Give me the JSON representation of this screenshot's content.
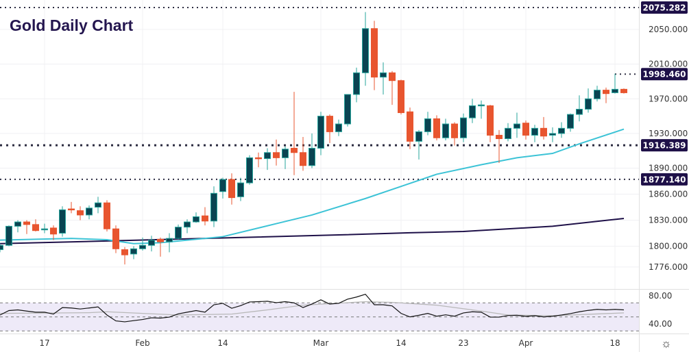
{
  "title": "Gold Daily Chart",
  "colors": {
    "up_body": "#0a4452",
    "up_wick": "#25a49b",
    "down_body": "#e8552f",
    "down_wick": "#e8552f",
    "ma_fast": "#3cc3d6",
    "ma_slow": "#1e1048",
    "level_bg": "#1e1048",
    "rsi": "#111111",
    "rsi_ma": "#b8b8b8",
    "rsi_band": "#eeeaf8"
  },
  "settings_icon": "gear-icon",
  "chart_data": {
    "type": "candlestick",
    "title": "Gold Daily Chart",
    "ylim": [
      1765,
      2085
    ],
    "y_ticks": [
      "1776.000",
      "1800.000",
      "1830.000",
      "1860.000",
      "1890.000",
      "1930.000",
      "1970.000",
      "2010.000",
      "2050.000"
    ],
    "x_ticks": [
      {
        "label": "17",
        "index": 5
      },
      {
        "label": "Feb",
        "index": 16
      },
      {
        "label": "14",
        "index": 25
      },
      {
        "label": "Mar",
        "index": 36
      },
      {
        "label": "14",
        "index": 45
      },
      {
        "label": "23",
        "index": 52
      },
      {
        "label": "Apr",
        "index": 59
      },
      {
        "label": "18",
        "index": 69
      }
    ],
    "levels": [
      {
        "value": 2075.282,
        "label": "2075.282",
        "from_index": 0
      },
      {
        "value": 1998.46,
        "label": "1998.460",
        "from_index": 69
      },
      {
        "value": 1916.389,
        "label": "1916.389",
        "from_index": 0
      },
      {
        "value": 1877.14,
        "label": "1877.140",
        "from_index": 0
      }
    ],
    "ohlc": [
      [
        1796,
        1803,
        1793,
        1801
      ],
      [
        1801,
        1824,
        1800,
        1823
      ],
      [
        1823,
        1830,
        1816,
        1828
      ],
      [
        1828,
        1830,
        1814,
        1825
      ],
      [
        1825,
        1831,
        1817,
        1818
      ],
      [
        1819,
        1826,
        1815,
        1820
      ],
      [
        1821,
        1824,
        1807,
        1814
      ],
      [
        1815,
        1846,
        1811,
        1842
      ],
      [
        1843,
        1851,
        1838,
        1842
      ],
      [
        1841,
        1846,
        1830,
        1836
      ],
      [
        1836,
        1847,
        1831,
        1844
      ],
      [
        1845,
        1857,
        1838,
        1850
      ],
      [
        1850,
        1853,
        1817,
        1820
      ],
      [
        1820,
        1824,
        1792,
        1797
      ],
      [
        1796,
        1799,
        1779,
        1790
      ],
      [
        1791,
        1800,
        1785,
        1797
      ],
      [
        1797,
        1810,
        1795,
        1801
      ],
      [
        1801,
        1812,
        1794,
        1807
      ],
      [
        1808,
        1810,
        1788,
        1805
      ],
      [
        1805,
        1815,
        1793,
        1809
      ],
      [
        1809,
        1825,
        1808,
        1822
      ],
      [
        1822,
        1831,
        1815,
        1828
      ],
      [
        1828,
        1839,
        1827,
        1834
      ],
      [
        1835,
        1845,
        1824,
        1829
      ],
      [
        1829,
        1869,
        1822,
        1861
      ],
      [
        1863,
        1879,
        1855,
        1877
      ],
      [
        1877,
        1884,
        1848,
        1856
      ],
      [
        1857,
        1879,
        1852,
        1873
      ],
      [
        1873,
        1905,
        1871,
        1902
      ],
      [
        1902,
        1908,
        1891,
        1901
      ],
      [
        1901,
        1913,
        1888,
        1908
      ],
      [
        1908,
        1923,
        1893,
        1902
      ],
      [
        1902,
        1915,
        1889,
        1912
      ],
      [
        1913,
        1978,
        1882,
        1908
      ],
      [
        1908,
        1926,
        1887,
        1893
      ],
      [
        1893,
        1930,
        1890,
        1913
      ],
      [
        1913,
        1955,
        1905,
        1950
      ],
      [
        1950,
        1952,
        1919,
        1932
      ],
      [
        1932,
        1946,
        1927,
        1941
      ],
      [
        1941,
        1975,
        1938,
        1975
      ],
      [
        1975,
        2006,
        1966,
        2000
      ],
      [
        2000,
        2070,
        1985,
        2051
      ],
      [
        2051,
        2060,
        1980,
        1995
      ],
      [
        1995,
        2012,
        1975,
        2000
      ],
      [
        2000,
        2002,
        1963,
        1991
      ],
      [
        1991,
        1992,
        1952,
        1954
      ],
      [
        1955,
        1960,
        1912,
        1921
      ],
      [
        1921,
        1934,
        1900,
        1932
      ],
      [
        1932,
        1955,
        1928,
        1947
      ],
      [
        1947,
        1951,
        1922,
        1925
      ],
      [
        1925,
        1947,
        1922,
        1941
      ],
      [
        1941,
        1943,
        1916,
        1925
      ],
      [
        1925,
        1953,
        1920,
        1948
      ],
      [
        1948,
        1970,
        1942,
        1962
      ],
      [
        1962,
        1968,
        1947,
        1963
      ],
      [
        1962,
        1963,
        1920,
        1928
      ],
      [
        1928,
        1934,
        1896,
        1924
      ],
      [
        1924,
        1942,
        1921,
        1936
      ],
      [
        1936,
        1954,
        1925,
        1941
      ],
      [
        1942,
        1945,
        1923,
        1928
      ],
      [
        1928,
        1940,
        1920,
        1936
      ],
      [
        1936,
        1949,
        1923,
        1927
      ],
      [
        1928,
        1937,
        1920,
        1930
      ],
      [
        1930,
        1943,
        1925,
        1936
      ],
      [
        1936,
        1953,
        1932,
        1952
      ],
      [
        1952,
        1974,
        1944,
        1958
      ],
      [
        1958,
        1982,
        1954,
        1970
      ],
      [
        1970,
        1985,
        1967,
        1980
      ],
      [
        1980,
        1983,
        1965,
        1976
      ],
      [
        1977,
        1999,
        1976,
        1981
      ],
      [
        1981,
        1982,
        1976,
        1977
      ]
    ],
    "ma_fast": [
      [
        0,
        1807
      ],
      [
        8,
        1809
      ],
      [
        12,
        1807.5
      ],
      [
        15,
        1803
      ],
      [
        18,
        1804
      ],
      [
        23,
        1809
      ],
      [
        25,
        1811
      ],
      [
        31,
        1826
      ],
      [
        35,
        1836
      ],
      [
        41,
        1855
      ],
      [
        45,
        1869
      ],
      [
        49,
        1883
      ],
      [
        54,
        1894
      ],
      [
        58,
        1902
      ],
      [
        62,
        1907
      ],
      [
        65,
        1918
      ],
      [
        70,
        1935
      ]
    ],
    "ma_slow": [
      [
        0,
        1803
      ],
      [
        12,
        1806
      ],
      [
        23,
        1809
      ],
      [
        38,
        1813
      ],
      [
        46,
        1815.5
      ],
      [
        52,
        1817
      ],
      [
        62,
        1823
      ],
      [
        70,
        1832
      ]
    ],
    "rsi": {
      "y_ticks": [
        "80.00",
        "40.00"
      ],
      "bands": [
        70,
        50,
        30
      ],
      "values": [
        52.7,
        59,
        60,
        58.3,
        56.7,
        56.7,
        54,
        63.3,
        62.7,
        61.3,
        62.7,
        64.3,
        52.7,
        44.3,
        43,
        44.7,
        46.3,
        48.7,
        48.3,
        49.7,
        54.3,
        56.7,
        59,
        56.7,
        67.3,
        69.3,
        62.3,
        66,
        71.3,
        71.7,
        72.3,
        70.3,
        71.7,
        70,
        63.3,
        68.3,
        74.3,
        68.3,
        69.3,
        75.3,
        78.3,
        82.3,
        67.3,
        67.3,
        65.7,
        55,
        50,
        52.3,
        55,
        51,
        53,
        51,
        55.7,
        57.3,
        56.7,
        49.7,
        49.7,
        52,
        52.3,
        50.7,
        51.7,
        50,
        51,
        52.7,
        54.7,
        57.3,
        59.3,
        60.7,
        60,
        60.7,
        60
      ],
      "ma": [
        [
          0,
          55
        ],
        [
          10,
          56
        ],
        [
          12,
          57.3
        ],
        [
          20,
          52.7
        ],
        [
          26,
          54
        ],
        [
          30,
          60
        ],
        [
          34,
          66.7
        ],
        [
          41,
          71.7
        ],
        [
          44,
          70.7
        ],
        [
          49,
          66.7
        ],
        [
          54,
          58.3
        ],
        [
          57,
          52.7
        ],
        [
          62,
          51.7
        ],
        [
          70,
          55.7
        ]
      ]
    }
  }
}
